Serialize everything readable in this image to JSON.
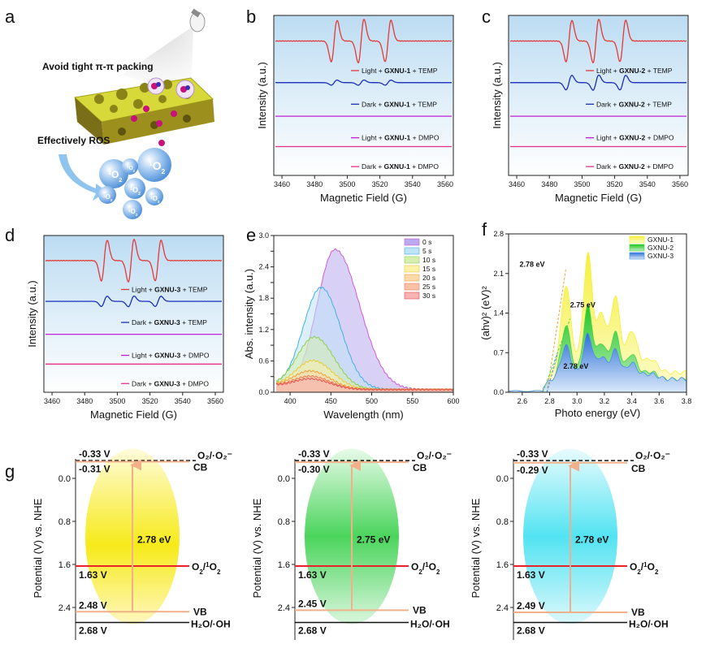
{
  "panel_letters": [
    "a",
    "b",
    "c",
    "d",
    "e",
    "f",
    "g"
  ],
  "illustration": {
    "top_text": "Avoid tight π-π packing",
    "side_text": "Effectively ROS",
    "species": "O",
    "species_sub": "2",
    "species_sup": "1"
  },
  "chart_data": [
    {
      "panel": "b",
      "type": "line",
      "xlabel": "Magnetic Field (G)",
      "ylabel": "Intensity (a.u.)",
      "xlim": [
        3455,
        3565
      ],
      "x_ticks": [
        "3460",
        "3480",
        "3500",
        "3520",
        "3540",
        "3560"
      ],
      "peaks": [
        3492,
        3508.5,
        3525
      ],
      "series": [
        {
          "name_pre": "Light + ",
          "name_bold": "GXNU-1",
          "name_post": " + TEMP",
          "color": "#e53935",
          "amplitude": 1.0
        },
        {
          "name_pre": "Dark + ",
          "name_bold": "GXNU-1",
          "name_post": " + TEMP",
          "color": "#1a2fb8",
          "amplitude": 0.12
        },
        {
          "name_pre": "Light + ",
          "name_bold": "GXNU-1",
          "name_post": " + DMPO",
          "color": "#c020d8",
          "amplitude": 0
        },
        {
          "name_pre": "Dark + ",
          "name_bold": "GXNU-1",
          "name_post": " + DMPO",
          "color": "#e8308a",
          "amplitude": 0
        }
      ]
    },
    {
      "panel": "c",
      "type": "line",
      "xlabel": "Magnetic Field (G)",
      "ylabel": "Intensity (a.u.)",
      "xlim": [
        3455,
        3565
      ],
      "x_ticks": [
        "3460",
        "3480",
        "3500",
        "3520",
        "3540",
        "3560"
      ],
      "peaks": [
        3492,
        3508.5,
        3525
      ],
      "series": [
        {
          "name_pre": "Light + ",
          "name_bold": "GXNU-2",
          "name_post": " + TEMP",
          "color": "#e53935",
          "amplitude": 1.0
        },
        {
          "name_pre": "Dark + ",
          "name_bold": "GXNU-2",
          "name_post": " + TEMP",
          "color": "#1a2fb8",
          "amplitude": 0.35
        },
        {
          "name_pre": "Light + ",
          "name_bold": "GXNU-2",
          "name_post": " + DMPO",
          "color": "#c020d8",
          "amplitude": 0
        },
        {
          "name_pre": "Dark + ",
          "name_bold": "GXNU-2",
          "name_post": " + DMPO",
          "color": "#e8308a",
          "amplitude": 0
        }
      ]
    },
    {
      "panel": "d",
      "type": "line",
      "xlabel": "Magnetic Field (G)",
      "ylabel": "Intensity (a.u.)",
      "xlim": [
        3455,
        3565
      ],
      "x_ticks": [
        "3460",
        "3480",
        "3500",
        "3520",
        "3540",
        "3560"
      ],
      "peaks": [
        3492,
        3508.5,
        3525
      ],
      "series": [
        {
          "name_pre": "Light + ",
          "name_bold": "GXNU-3",
          "name_post": " + TEMP",
          "color": "#e53935",
          "amplitude": 1.0
        },
        {
          "name_pre": "Dark + ",
          "name_bold": "GXNU-3",
          "name_post": " + TEMP",
          "color": "#1a2fb8",
          "amplitude": 0.25
        },
        {
          "name_pre": "Light + ",
          "name_bold": "GXNU-3",
          "name_post": " + DMPO",
          "color": "#c020d8",
          "amplitude": 0
        },
        {
          "name_pre": "Dark + ",
          "name_bold": "GXNU-3",
          "name_post": " + DMPO",
          "color": "#e8308a",
          "amplitude": 0
        }
      ]
    },
    {
      "panel": "e",
      "type": "area",
      "xlabel": "Wavelength (nm)",
      "ylabel": "Abs. intensity (a.u.)",
      "xlim": [
        380,
        600
      ],
      "ylim": [
        0,
        3.0
      ],
      "x_ticks": [
        "400",
        "450",
        "500",
        "550",
        "600"
      ],
      "y_ticks": [
        "0.0",
        "0.3",
        "0.6",
        "0.9",
        "1.2",
        "1.5",
        "1.8",
        "2.1",
        "2.4",
        "2.7",
        "3.0"
      ],
      "legend_position": "top-right",
      "series": [
        {
          "name": "0 s",
          "peak_nm": 455,
          "peak": 2.68,
          "color": "#b9a9ee",
          "line": "#d05ad8"
        },
        {
          "name": "5 s",
          "peak_nm": 438,
          "peak": 1.95,
          "color": "#bfe3f7",
          "line": "#3fb0e6"
        },
        {
          "name": "10 s",
          "peak_nm": 430,
          "peak": 1.0,
          "color": "#d6efb0",
          "line": "#8fcf4a"
        },
        {
          "name": "15 s",
          "peak_nm": 428,
          "peak": 0.55,
          "color": "#fbf1a8",
          "line": "#e9c93a"
        },
        {
          "name": "20 s",
          "peak_nm": 425,
          "peak": 0.35,
          "color": "#fcd9a8",
          "line": "#f0a040"
        },
        {
          "name": "25 s",
          "peak_nm": 425,
          "peak": 0.25,
          "color": "#f9c2a8",
          "line": "#ee7a55"
        },
        {
          "name": "30 s",
          "peak_nm": 425,
          "peak": 0.2,
          "color": "#f8b4b4",
          "line": "#e84c4c"
        }
      ]
    },
    {
      "panel": "f",
      "type": "area",
      "xlabel": "Photo energy (eV)",
      "ylabel": "(ahv)² (eV)²",
      "xlim": [
        2.5,
        3.8
      ],
      "ylim": [
        0,
        2.8
      ],
      "x_ticks": [
        "2.6",
        "2.8",
        "3.0",
        "3.2",
        "3.4",
        "3.6",
        "3.8"
      ],
      "y_ticks": [
        "0.0",
        "0.7",
        "1.4",
        "2.1",
        "2.8"
      ],
      "legend_position": "top-right",
      "series": [
        {
          "name": "GXNU-1",
          "color": "#f5f03c",
          "bandgap": "2.78 eV",
          "bandgap_color": "#f0a040"
        },
        {
          "name": "GXNU-2",
          "color": "#3fd63f",
          "bandgap": "2.75 eV",
          "bandgap_color": "#3fd63f"
        },
        {
          "name": "GXNU-3",
          "color": "#4a8fe8",
          "bandgap": "2.78 eV",
          "bandgap_color": "#4a8fe8"
        }
      ]
    },
    {
      "panel": "g",
      "type": "diagram",
      "ylabel": "Potential (V) vs. NHE",
      "y_ticks": [
        "0.0",
        "0.8",
        "1.6",
        "2.4"
      ],
      "levels": {
        "o2_superoxide_potential": "-0.33 V",
        "o2_superoxide_label": "O₂/·O₂⁻",
        "singlet_label_main": "O",
        "singlet_label_sub": "2",
        "singlet_potential": "1.63 V",
        "water_potential": "2.68 V",
        "water_label": "H₂O/·OH",
        "cb_label": "CB",
        "vb_label": "VB"
      },
      "materials": [
        {
          "cb": "-0.31 V",
          "vb": "2.48 V",
          "gap": "2.78 eV",
          "cb_value": -0.31,
          "vb_value": 2.48,
          "color": "#f5e800"
        },
        {
          "cb": "-0.30 V",
          "vb": "2.45 V",
          "gap": "2.75 eV",
          "cb_value": -0.3,
          "vb_value": 2.45,
          "color": "#37d04a"
        },
        {
          "cb": "-0.29 V",
          "vb": "2.49 V",
          "gap": "2.78 eV",
          "cb_value": -0.29,
          "vb_value": 2.49,
          "color": "#3fe0f0"
        }
      ]
    }
  ],
  "colors": {
    "panel_bg_top": "#ffffff",
    "panel_bg_bottom": "#bcdcf2",
    "red_line": "#e8232a",
    "orange_line": "#f2b08a"
  }
}
